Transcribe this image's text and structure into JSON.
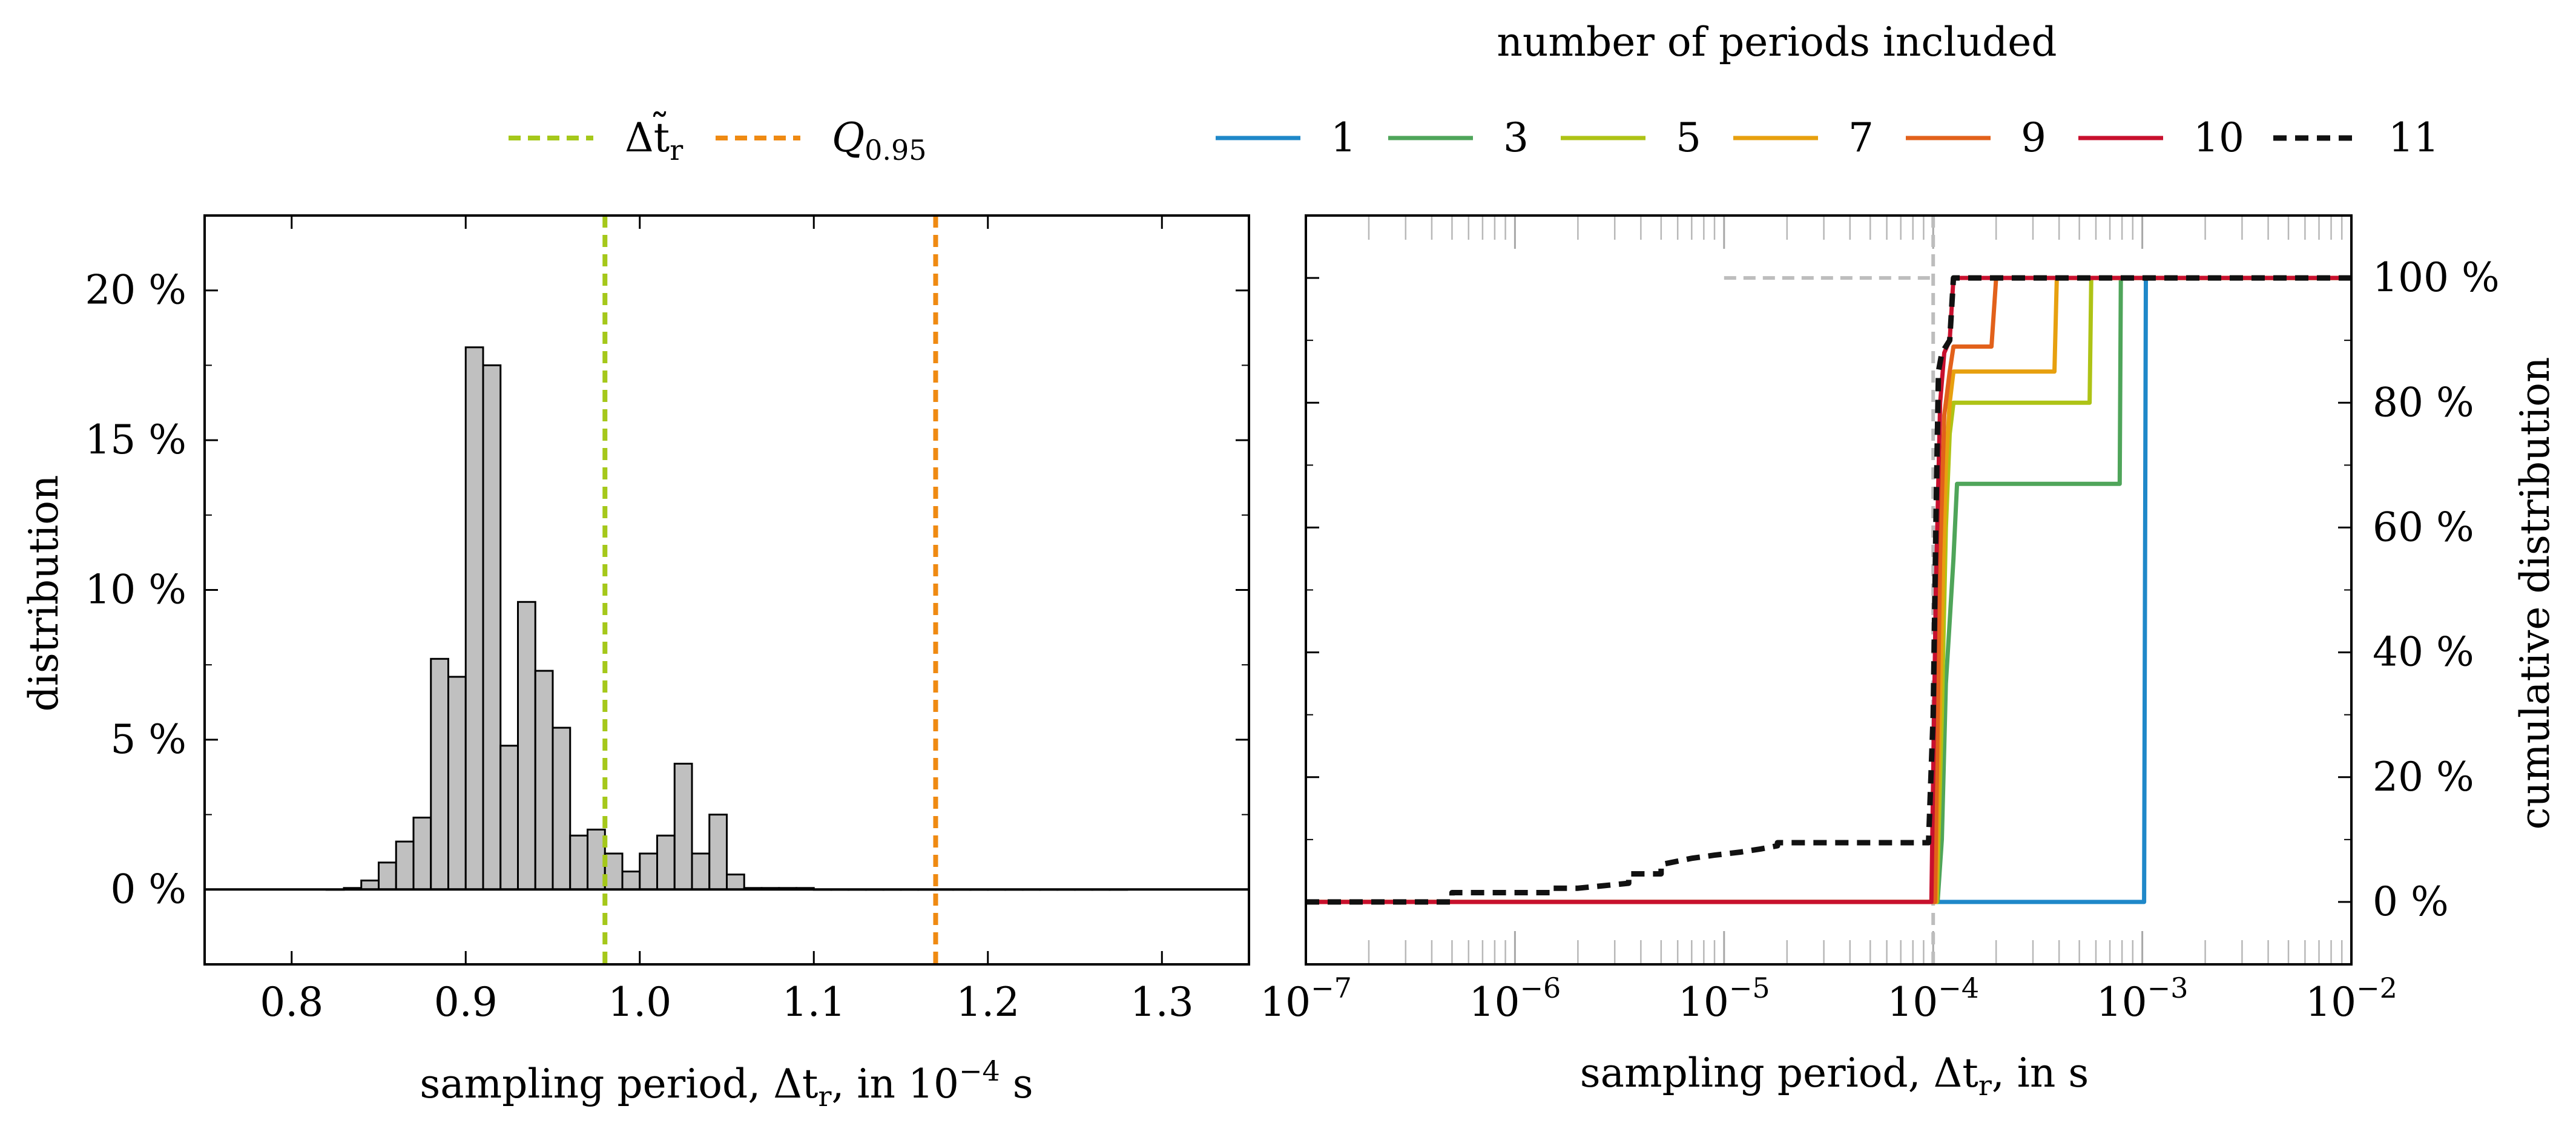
{
  "figure": {
    "left_legend": [
      {
        "label": "Δt̃",
        "sub": "r",
        "color": "#a5c81a",
        "dash": true
      },
      {
        "label": "Q",
        "sub": "0.95",
        "color": "#ef8a12",
        "dash": true
      }
    ],
    "right_legend_title": "number of periods included"
  },
  "chart_data": [
    {
      "type": "bar",
      "subtype": "histogram",
      "xlabel_pre": "sampling period, Δt",
      "xlabel_sub": "r",
      "xlabel_post": ", in 10",
      "xlabel_sup": "−4",
      "xlabel_unit": " s",
      "ylabel": "distribution",
      "xlim": [
        0.75,
        1.35
      ],
      "ylim": [
        -2.5,
        22.5
      ],
      "xticks": [
        0.8,
        0.9,
        1.0,
        1.1,
        1.2,
        1.3
      ],
      "xtick_labels": [
        "0.8",
        "0.9",
        "1.0",
        "1.1",
        "1.2",
        "1.3"
      ],
      "yticks": [
        0,
        5,
        10,
        15,
        20
      ],
      "ytick_labels": [
        "0 %",
        "5 %",
        "10 %",
        "15 %",
        "20 %"
      ],
      "bin_width": 0.01,
      "bin_starts": [
        0.82,
        0.83,
        0.84,
        0.85,
        0.86,
        0.87,
        0.88,
        0.89,
        0.9,
        0.91,
        0.92,
        0.93,
        0.94,
        0.95,
        0.96,
        0.97,
        0.98,
        0.99,
        1.0,
        1.01,
        1.02,
        1.03,
        1.04,
        1.05,
        1.06,
        1.07,
        1.08,
        1.09,
        1.1,
        1.11,
        1.12,
        1.13,
        1.14,
        1.15,
        1.16,
        1.17,
        1.18,
        1.19,
        1.2,
        1.21,
        1.22,
        1.23,
        1.24,
        1.25,
        1.26,
        1.27
      ],
      "values": [
        0.0,
        0.05,
        0.3,
        0.9,
        1.6,
        2.4,
        7.7,
        7.1,
        18.1,
        17.5,
        4.8,
        9.6,
        7.3,
        5.4,
        1.8,
        2.0,
        1.2,
        0.6,
        1.2,
        1.8,
        4.2,
        1.2,
        2.5,
        0.5,
        0.05,
        0.05,
        0.05,
        0.05,
        0.0,
        0.0,
        0.0,
        0.0,
        0.0,
        0.0,
        0.0,
        0.0,
        0.0,
        0.0,
        0.0,
        0.0,
        0.0,
        0.0,
        0.0,
        0.0,
        0.0,
        0.0
      ],
      "vlines": [
        {
          "x": 0.98,
          "color": "#a5c81a"
        },
        {
          "x": 1.17,
          "color": "#ef8a12"
        }
      ],
      "bar_color": "#c0c0c0",
      "grid": false
    },
    {
      "type": "line",
      "xscale": "log",
      "xlabel_pre": "sampling period, Δt",
      "xlabel_sub": "r",
      "xlabel_post": ", in s",
      "ylabel": "cumulative distribution",
      "xlim": [
        1e-07,
        0.01
      ],
      "ylim": [
        -10,
        110
      ],
      "xticks": [
        1e-07,
        1e-06,
        1e-05,
        0.0001,
        0.001,
        0.01
      ],
      "xtick_exponents": [
        "−7",
        "−6",
        "−5",
        "−4",
        "−3",
        "−2"
      ],
      "yticks": [
        0,
        20,
        40,
        60,
        80,
        100
      ],
      "ytick_labels": [
        "0 %",
        "20 %",
        "40 %",
        "60 %",
        "80 %",
        "100 %"
      ],
      "yaxis_side": "right",
      "legend_position": "top",
      "reference_lines": [
        {
          "type": "vertical",
          "x": 0.0001,
          "color": "#bdbdbd"
        },
        {
          "type": "horizontal",
          "y": 100,
          "x_from": 1e-05,
          "x_to": 0.0001,
          "color": "#bdbdbd"
        }
      ],
      "series": [
        {
          "name": "1",
          "color": "#1f88c9",
          "dash": false,
          "points": [
            [
              1e-07,
              0
            ],
            [
              0.00102,
              0
            ],
            [
              0.00104,
              100
            ],
            [
              0.01,
              100
            ]
          ]
        },
        {
          "name": "3",
          "color": "#4fa55a",
          "dash": false,
          "points": [
            [
              1e-07,
              0
            ],
            [
              0.000105,
              0
            ],
            [
              0.00011,
              10
            ],
            [
              0.000115,
              35
            ],
            [
              0.00012,
              45
            ],
            [
              0.000125,
              55
            ],
            [
              0.00013,
              67
            ],
            [
              0.00078,
              67
            ],
            [
              0.00079,
              100
            ],
            [
              0.01,
              100
            ]
          ]
        },
        {
          "name": "5",
          "color": "#aec316",
          "dash": false,
          "points": [
            [
              1e-07,
              0
            ],
            [
              0.000104,
              0
            ],
            [
              0.00011,
              30
            ],
            [
              0.000115,
              60
            ],
            [
              0.00012,
              75
            ],
            [
              0.000125,
              80
            ],
            [
              0.00013,
              80
            ],
            [
              0.00056,
              80
            ],
            [
              0.00057,
              100
            ],
            [
              0.01,
              100
            ]
          ]
        },
        {
          "name": "7",
          "color": "#e7a00f",
          "dash": false,
          "points": [
            [
              1e-07,
              0
            ],
            [
              0.000103,
              0
            ],
            [
              0.00011,
              45
            ],
            [
              0.000115,
              70
            ],
            [
              0.00012,
              80
            ],
            [
              0.000125,
              85
            ],
            [
              0.00038,
              85
            ],
            [
              0.00039,
              100
            ],
            [
              0.01,
              100
            ]
          ]
        },
        {
          "name": "9",
          "color": "#e2611b",
          "dash": false,
          "points": [
            [
              1e-07,
              0
            ],
            [
              0.000102,
              0
            ],
            [
              0.000108,
              55
            ],
            [
              0.000113,
              78
            ],
            [
              0.00012,
              85
            ],
            [
              0.000125,
              89
            ],
            [
              0.00019,
              89
            ],
            [
              0.0002,
              100
            ],
            [
              0.01,
              100
            ]
          ]
        },
        {
          "name": "10",
          "color": "#c8102e",
          "dash": false,
          "points": [
            [
              1e-07,
              0
            ],
            [
              9.8e-05,
              0
            ],
            [
              0.000103,
              50
            ],
            [
              0.000108,
              80
            ],
            [
              0.000113,
              88
            ],
            [
              0.00012,
              90
            ],
            [
              0.000125,
              100
            ],
            [
              0.01,
              100
            ]
          ]
        },
        {
          "name": "11",
          "color": "#111111",
          "dash": true,
          "points": [
            [
              1e-07,
              0
            ],
            [
              5e-07,
              0
            ],
            [
              5e-07,
              1.5
            ],
            [
              1.5e-06,
              1.5
            ],
            [
              1.5e-06,
              2.2
            ],
            [
              2e-06,
              2.2
            ],
            [
              3.5e-06,
              3
            ],
            [
              3.5e-06,
              4.5
            ],
            [
              5e-06,
              4.5
            ],
            [
              5e-06,
              6
            ],
            [
              7e-06,
              7
            ],
            [
              9e-06,
              7.5
            ],
            [
              1.2e-05,
              8
            ],
            [
              1.5e-05,
              8.5
            ],
            [
              1.8e-05,
              9
            ],
            [
              1.8e-05,
              9.5
            ],
            [
              9.5e-05,
              9.5
            ],
            [
              0.0001,
              30
            ],
            [
              0.000103,
              60
            ],
            [
              0.000106,
              85
            ],
            [
              0.00011,
              88
            ],
            [
              0.00012,
              90
            ],
            [
              0.000125,
              100
            ],
            [
              0.01,
              100
            ]
          ]
        }
      ],
      "grid": false
    }
  ]
}
